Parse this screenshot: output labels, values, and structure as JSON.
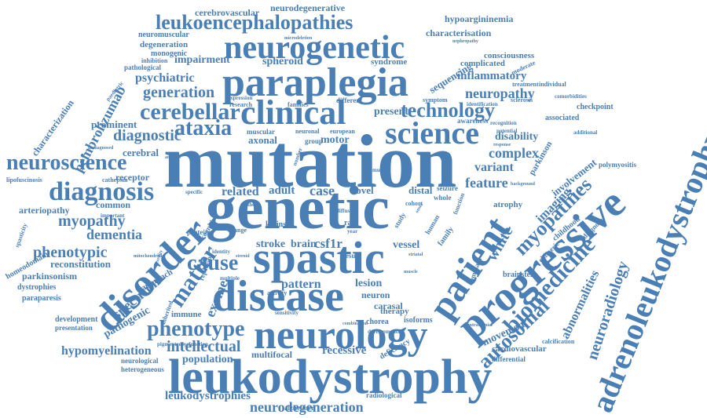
{
  "colors": {
    "word": "#4a7fb5",
    "background": "#ffffff"
  },
  "words": [
    {
      "text": "mutation",
      "weight": 100
    },
    {
      "text": "genetic",
      "weight": 95
    },
    {
      "text": "disease",
      "weight": 80
    },
    {
      "text": "neurology",
      "weight": 78
    },
    {
      "text": "leukodystrophy",
      "weight": 75
    },
    {
      "text": "spastic",
      "weight": 72
    },
    {
      "text": "progressive",
      "weight": 70
    },
    {
      "text": "paraplegia",
      "weight": 68
    },
    {
      "text": "adrenoleukodystrophy",
      "weight": 66
    },
    {
      "text": "neurogenetic",
      "weight": 64
    },
    {
      "text": "disorder",
      "weight": 62
    },
    {
      "text": "clinical",
      "weight": 60
    },
    {
      "text": "patient",
      "weight": 58
    },
    {
      "text": "science",
      "weight": 52
    },
    {
      "text": "cerebellar",
      "weight": 42
    },
    {
      "text": "diagnosis",
      "weight": 45
    },
    {
      "text": "leukoencephalopathies",
      "weight": 40
    },
    {
      "text": "technology",
      "weight": 38
    },
    {
      "text": "neuroscience",
      "weight": 38
    },
    {
      "text": "biomedicine",
      "weight": 38
    },
    {
      "text": "ataxia",
      "weight": 34
    },
    {
      "text": "cause",
      "weight": 34
    },
    {
      "text": "matter",
      "weight": 32
    },
    {
      "text": "phenotype",
      "weight": 32
    },
    {
      "text": "autosomal",
      "weight": 32
    },
    {
      "text": "myopathies",
      "weight": 30
    },
    {
      "text": "neuroradiology",
      "weight": 26
    },
    {
      "text": "generation",
      "weight": 26
    },
    {
      "text": "diagnostic",
      "weight": 24
    },
    {
      "text": "myopathy",
      "weight": 24
    },
    {
      "text": "intellectual",
      "weight": 24
    },
    {
      "text": "phenotypic",
      "weight": 22
    },
    {
      "text": "neurodegeneration",
      "weight": 22
    },
    {
      "text": "dementia",
      "weight": 22
    },
    {
      "text": "exome",
      "weight": 22
    },
    {
      "text": "spectrum",
      "weight": 20
    },
    {
      "text": "pembrolizumab",
      "weight": 20
    },
    {
      "text": "abnormalities",
      "weight": 20
    },
    {
      "text": "feature",
      "weight": 20
    },
    {
      "text": "neuropathy",
      "weight": 20
    },
    {
      "text": "complex",
      "weight": 20
    },
    {
      "text": "white",
      "weight": 20
    },
    {
      "text": "pattern",
      "weight": 18
    },
    {
      "text": "related",
      "weight": 18
    },
    {
      "text": "psychiatric",
      "weight": 18
    },
    {
      "text": "inflammatory",
      "weight": 16
    },
    {
      "text": "hypomyelination",
      "weight": 18
    },
    {
      "text": "leukodystrophies",
      "weight": 18
    },
    {
      "text": "population",
      "weight": 16
    },
    {
      "text": "pathogenic",
      "weight": 16
    },
    {
      "text": "recessive",
      "weight": 16
    },
    {
      "text": "movement",
      "weight": 16
    },
    {
      "text": "disability",
      "weight": 14
    },
    {
      "text": "variant",
      "weight": 16
    },
    {
      "text": "imaging",
      "weight": 16
    },
    {
      "text": "involvement",
      "weight": 14
    },
    {
      "text": "impairment",
      "weight": 14
    },
    {
      "text": "sequencing",
      "weight": 14
    },
    {
      "text": "spheroid",
      "weight": 14
    },
    {
      "text": "stroke",
      "weight": 14
    },
    {
      "text": "brain",
      "weight": 14
    },
    {
      "text": "csf1r",
      "weight": 16
    },
    {
      "text": "vessel",
      "weight": 14
    },
    {
      "text": "lesion",
      "weight": 14
    },
    {
      "text": "carasal",
      "weight": 12
    },
    {
      "text": "adult",
      "weight": 14
    },
    {
      "text": "case",
      "weight": 16
    },
    {
      "text": "novel",
      "weight": 12
    },
    {
      "text": "distal",
      "weight": 12
    },
    {
      "text": "present",
      "weight": 14
    },
    {
      "text": "motor",
      "weight": 14
    },
    {
      "text": "axonal",
      "weight": 12
    },
    {
      "text": "cerebral",
      "weight": 12
    },
    {
      "text": "prominent",
      "weight": 12
    },
    {
      "text": "receptor",
      "weight": 12
    },
    {
      "text": "common",
      "weight": 12
    },
    {
      "text": "arteriopathy",
      "weight": 12
    },
    {
      "text": "reconstitution",
      "weight": 12
    },
    {
      "text": "homeodomain",
      "weight": 11
    },
    {
      "text": "parkinsonism",
      "weight": 12
    },
    {
      "text": "dystrophies",
      "weight": 10
    },
    {
      "text": "paraparesis",
      "weight": 10
    },
    {
      "text": "development",
      "weight": 10
    },
    {
      "text": "presentation",
      "weight": 9
    },
    {
      "text": "approach",
      "weight": 12
    },
    {
      "text": "immune",
      "weight": 12
    },
    {
      "text": "multifocal",
      "weight": 12
    },
    {
      "text": "neuron",
      "weight": 12
    },
    {
      "text": "therapy",
      "weight": 11
    },
    {
      "text": "chorea",
      "weight": 10
    },
    {
      "text": "isoforms",
      "weight": 10
    },
    {
      "text": "deficiency",
      "weight": 10
    },
    {
      "text": "cardiovascular",
      "weight": 11
    },
    {
      "text": "differential",
      "weight": 9
    },
    {
      "text": "calcification",
      "weight": 8
    },
    {
      "text": "brainstem",
      "weight": 10
    },
    {
      "text": "atrophy",
      "weight": 11
    },
    {
      "text": "childhood",
      "weight": 10
    },
    {
      "text": "diagnose",
      "weight": 9
    },
    {
      "text": "chimeric",
      "weight": 9
    },
    {
      "text": "polymyositis",
      "weight": 9
    },
    {
      "text": "parkinson",
      "weight": 11
    },
    {
      "text": "associated",
      "weight": 10
    },
    {
      "text": "checkpoint",
      "weight": 10
    },
    {
      "text": "neurodegenerative",
      "weight": 12
    },
    {
      "text": "cerebrovascular",
      "weight": 12
    },
    {
      "text": "hypoargininemia",
      "weight": 12
    },
    {
      "text": "characterisation",
      "weight": 12
    },
    {
      "text": "characterization",
      "weight": 12
    },
    {
      "text": "neuromuscular",
      "weight": 10
    },
    {
      "text": "degeneration",
      "weight": 11
    },
    {
      "text": "monogenic",
      "weight": 10
    },
    {
      "text": "inhibition",
      "weight": 9
    },
    {
      "text": "pathological",
      "weight": 9
    },
    {
      "text": "consciousness",
      "weight": 11
    },
    {
      "text": "complicated",
      "weight": 11
    },
    {
      "text": "syndrome",
      "weight": 11
    },
    {
      "text": "muscular",
      "weight": 9
    },
    {
      "text": "neuronal",
      "weight": 9
    },
    {
      "text": "european",
      "weight": 9
    },
    {
      "text": "group",
      "weight": 9
    },
    {
      "text": "family",
      "weight": 10
    },
    {
      "text": "human",
      "weight": 10
    },
    {
      "text": "cognitive",
      "weight": 9
    },
    {
      "text": "kidins",
      "weight": 10
    },
    {
      "text": "protein",
      "weight": 9
    },
    {
      "text": "change",
      "weight": 8
    },
    {
      "text": "rare",
      "weight": 10
    },
    {
      "text": "seizure",
      "weight": 9
    },
    {
      "text": "whole",
      "weight": 9
    },
    {
      "text": "cohort",
      "weight": 8
    },
    {
      "text": "function",
      "weight": 8
    },
    {
      "text": "dominant",
      "weight": 9
    },
    {
      "text": "lipofuscinosis",
      "weight": 8
    },
    {
      "text": "cathepsin",
      "weight": 8
    },
    {
      "text": "spasticity",
      "weight": 8
    },
    {
      "text": "alzheimer",
      "weight": 9
    },
    {
      "text": "radiological",
      "weight": 9
    },
    {
      "text": "neurological",
      "weight": 9
    },
    {
      "text": "heterogeneous",
      "weight": 9
    },
    {
      "text": "different",
      "weight": 9
    },
    {
      "text": "research",
      "weight": 8
    },
    {
      "text": "families",
      "weight": 8
    },
    {
      "text": "awareness",
      "weight": 9
    },
    {
      "text": "recognition",
      "weight": 8
    },
    {
      "text": "identification",
      "weight": 8
    },
    {
      "text": "treatment",
      "weight": 8
    },
    {
      "text": "individual",
      "weight": 8
    },
    {
      "text": "moderate",
      "weight": 8
    },
    {
      "text": "symptom",
      "weight": 8
    },
    {
      "text": "sclerosis",
      "weight": 8
    },
    {
      "text": "potential",
      "weight": 8
    },
    {
      "text": "identity",
      "weight": 8
    },
    {
      "text": "multiple",
      "weight": 8
    },
    {
      "text": "repressor",
      "weight": 9
    },
    {
      "text": "inherited",
      "weight": 8
    },
    {
      "text": "additional",
      "weight": 8
    },
    {
      "text": "paediatric",
      "weight": 8
    },
    {
      "text": "comorbidities",
      "weight": 7
    },
    {
      "text": "activity",
      "weight": 8
    },
    {
      "text": "diffuse",
      "weight": 7
    },
    {
      "text": "specific",
      "weight": 7
    },
    {
      "text": "dysfunction",
      "weight": 7
    },
    {
      "text": "pigmented",
      "weight": 7
    },
    {
      "text": "sensitivity",
      "weight": 7
    },
    {
      "text": "developmental",
      "weight": 7
    },
    {
      "text": "result",
      "weight": 8
    },
    {
      "text": "study",
      "weight": 8
    },
    {
      "text": "year",
      "weight": 7
    },
    {
      "text": "method",
      "weight": 7
    },
    {
      "text": "important",
      "weight": 7
    },
    {
      "text": "mutant",
      "weight": 7
    },
    {
      "text": "microdeletion",
      "weight": 6
    },
    {
      "text": "nephropathy",
      "weight": 6
    },
    {
      "text": "expression",
      "weight": 7
    },
    {
      "text": "undiagnosed",
      "weight": 6
    },
    {
      "text": "number",
      "weight": 7
    },
    {
      "text": "background",
      "weight": 6
    },
    {
      "text": "intracranial",
      "weight": 6
    },
    {
      "text": "response",
      "weight": 6
    },
    {
      "text": "steroid",
      "weight": 6
    },
    {
      "text": "heredity",
      "weight": 6
    },
    {
      "text": "striatal",
      "weight": 6
    },
    {
      "text": "muscle",
      "weight": 6
    },
    {
      "text": "analysis",
      "weight": 6
    },
    {
      "text": "onset",
      "weight": 6
    },
    {
      "text": "mitochondrial",
      "weight": 6
    },
    {
      "text": "combination",
      "weight": 6
    }
  ]
}
